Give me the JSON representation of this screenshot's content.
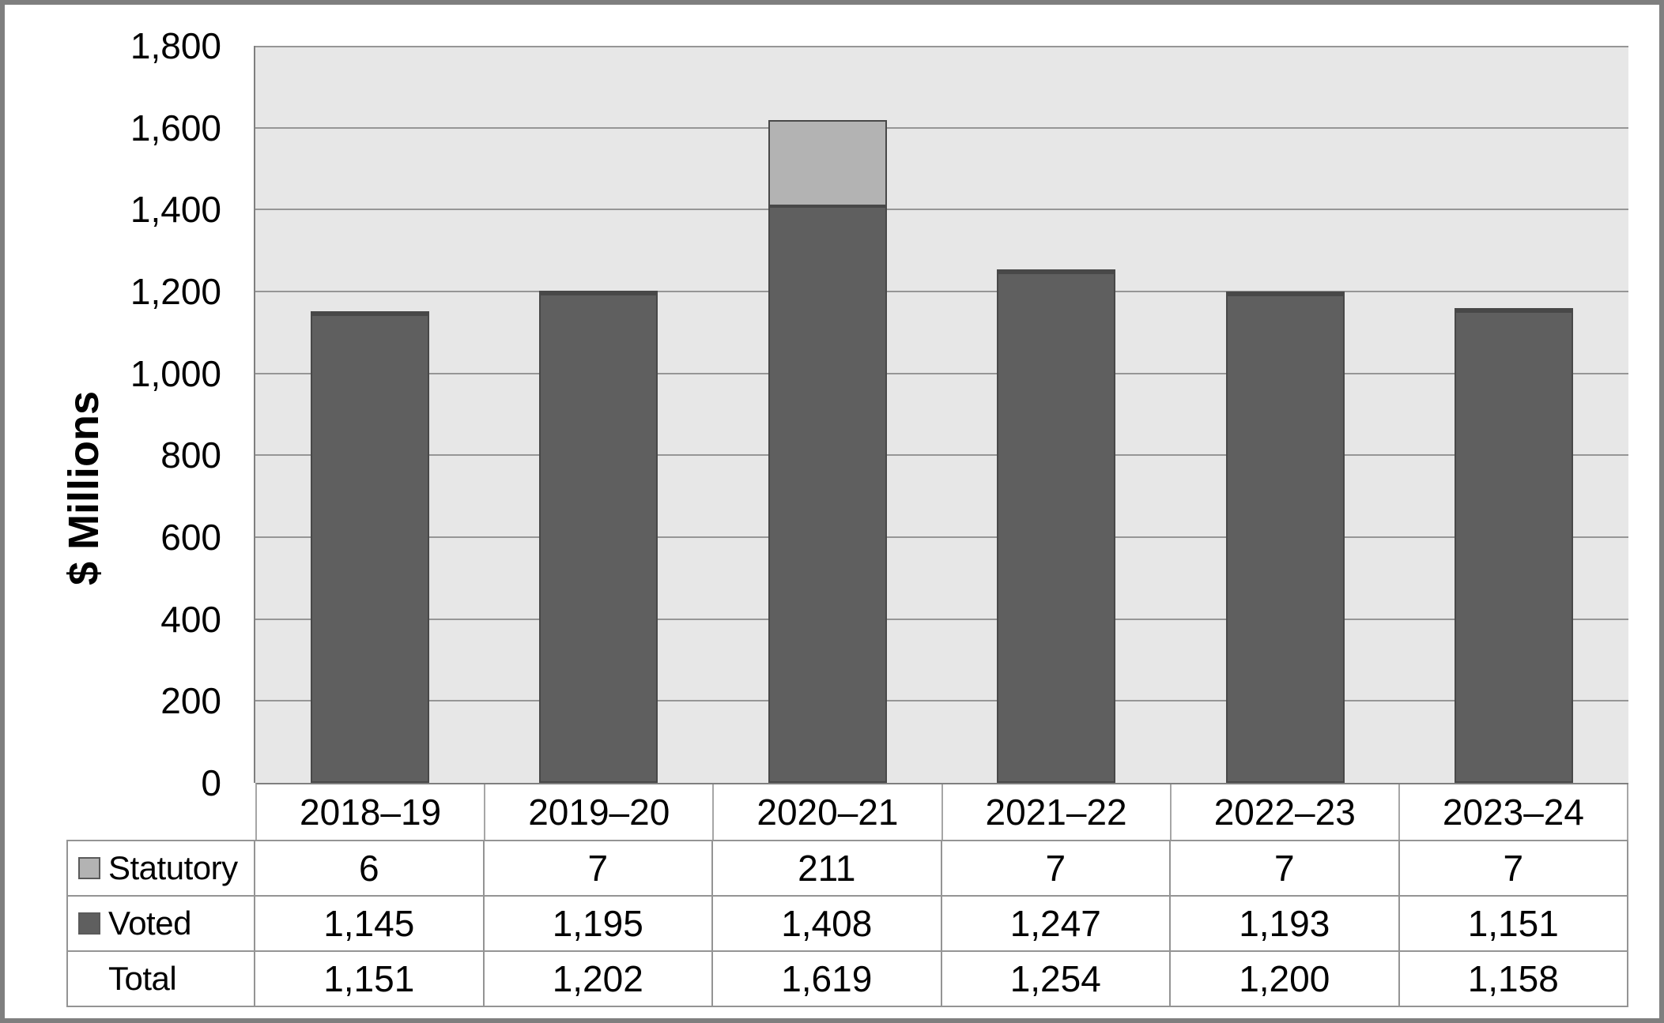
{
  "chart_data": {
    "type": "bar",
    "stacked": true,
    "title": "",
    "ylabel": "$ Millions",
    "xlabel": "",
    "ylim": [
      0,
      1800
    ],
    "ytick_step": 200,
    "ytick_labels": [
      "0",
      "200",
      "400",
      "600",
      "800",
      "1,000",
      "1,200",
      "1,400",
      "1,600",
      "1,800"
    ],
    "grid": true,
    "legend_position": "table-left",
    "categories": [
      "2018–19",
      "2019–20",
      "2020–21",
      "2021–22",
      "2022–23",
      "2023–24"
    ],
    "series": [
      {
        "name": "Statutory",
        "color": "#b3b3b3",
        "values": [
          6,
          7,
          211,
          7,
          7,
          7
        ]
      },
      {
        "name": "Voted",
        "color": "#5f5f5f",
        "values": [
          1145,
          1195,
          1408,
          1247,
          1193,
          1151
        ]
      }
    ],
    "totals": {
      "label": "Total",
      "values": [
        1151,
        1202,
        1619,
        1254,
        1200,
        1158
      ]
    },
    "colors": {
      "plot_background": "#e7e7e7",
      "gridline": "#969696",
      "axis_line": "#7f7f7f",
      "bar_border": "#484848",
      "table_border": "#949494",
      "frame": "#7f7f7f",
      "text": "#000000"
    }
  }
}
